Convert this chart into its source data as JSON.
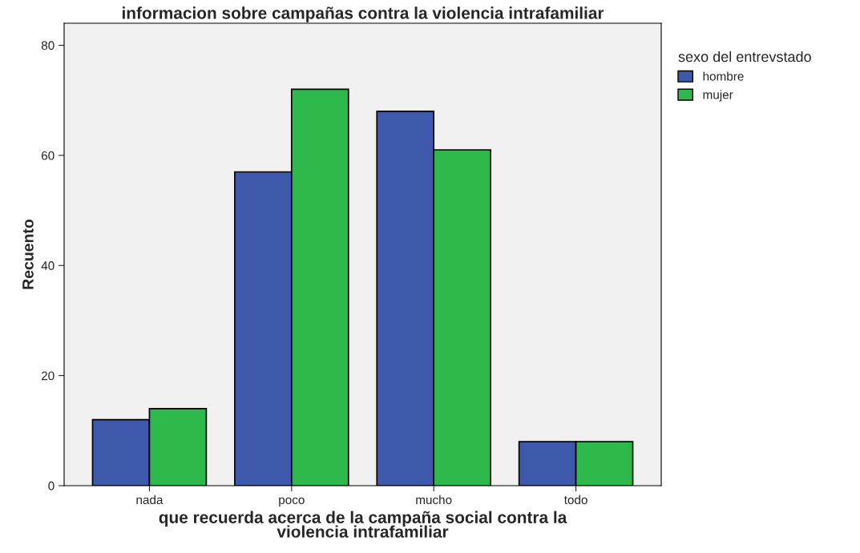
{
  "chart_data": {
    "type": "bar",
    "title": "informacion sobre campañas contra la violencia intrafamiliar",
    "xlabel": "que recuerda acerca de la campaña social contra la\nviolencia intrafamiliar",
    "ylabel": "Recuento",
    "legend_title": "sexo del entrevstado",
    "categories": [
      "nada",
      "poco",
      "mucho",
      "todo"
    ],
    "series": [
      {
        "name": "hombre",
        "color": "#3e58ac",
        "values": [
          12,
          57,
          68,
          8
        ]
      },
      {
        "name": "mujer",
        "color": "#2db84b",
        "values": [
          14,
          72,
          61,
          8
        ]
      }
    ],
    "ylim": [
      0,
      84
    ],
    "yticks": [
      0,
      20,
      40,
      60,
      80
    ],
    "grid": false,
    "legend": "top right"
  }
}
